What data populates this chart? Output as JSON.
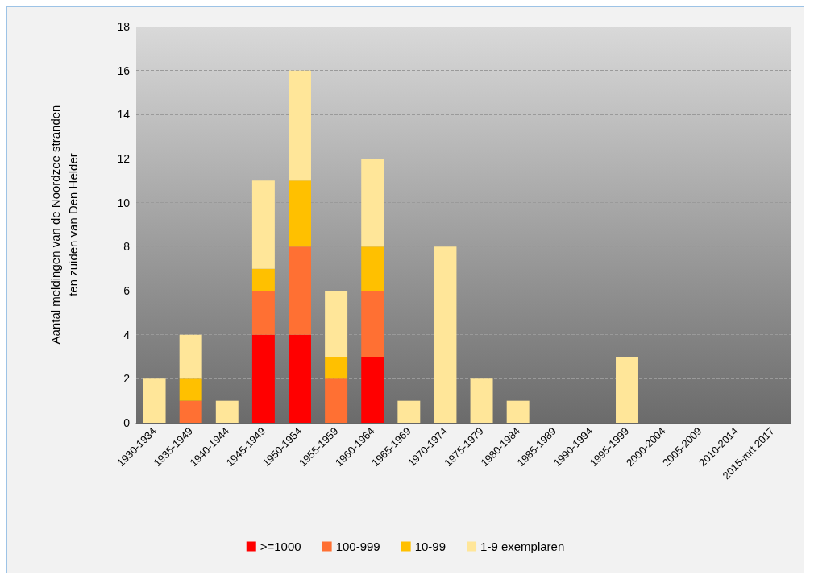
{
  "chart_data": {
    "type": "bar",
    "stacked": true,
    "ylabel": "Aantal meldingen van de Noordzee stranden\nten zuiden van Den Helder",
    "categories": [
      "1930-1934",
      "1935-1949",
      "1940-1944",
      "1945-1949",
      "1950-1954",
      "1955-1959",
      "1960-1964",
      "1965-1969",
      "1970-1974",
      "1975-1979",
      "1980-1984",
      "1985-1989",
      "1990-1994",
      "1995-1999",
      "2000-2004",
      "2005-2009",
      "2010-2014",
      "2015-mrt 2017"
    ],
    "series": [
      {
        "name": ">=1000",
        "color": "#ff0000",
        "values": [
          0,
          0,
          0,
          4,
          4,
          0,
          3,
          0,
          0,
          0,
          0,
          0,
          0,
          0,
          0,
          0,
          0,
          0
        ]
      },
      {
        "name": "100-999",
        "color": "#ff7033",
        "values": [
          0,
          1,
          0,
          2,
          4,
          2,
          3,
          0,
          0,
          0,
          0,
          0,
          0,
          0,
          0,
          0,
          0,
          0
        ]
      },
      {
        "name": "10-99",
        "color": "#ffc000",
        "values": [
          0,
          1,
          0,
          1,
          3,
          1,
          2,
          0,
          0,
          0,
          0,
          0,
          0,
          0,
          0,
          0,
          0,
          0
        ]
      },
      {
        "name": "1-9 exemplaren",
        "color": "#ffe699",
        "values": [
          2,
          2,
          1,
          4,
          5,
          3,
          4,
          1,
          8,
          2,
          1,
          0,
          0,
          3,
          0,
          0,
          0,
          0
        ]
      }
    ],
    "ylim": [
      0,
      18
    ],
    "yticks": [
      0,
      2,
      4,
      6,
      8,
      10,
      12,
      14,
      16,
      18
    ],
    "grid": "y",
    "legend": "bottom"
  }
}
